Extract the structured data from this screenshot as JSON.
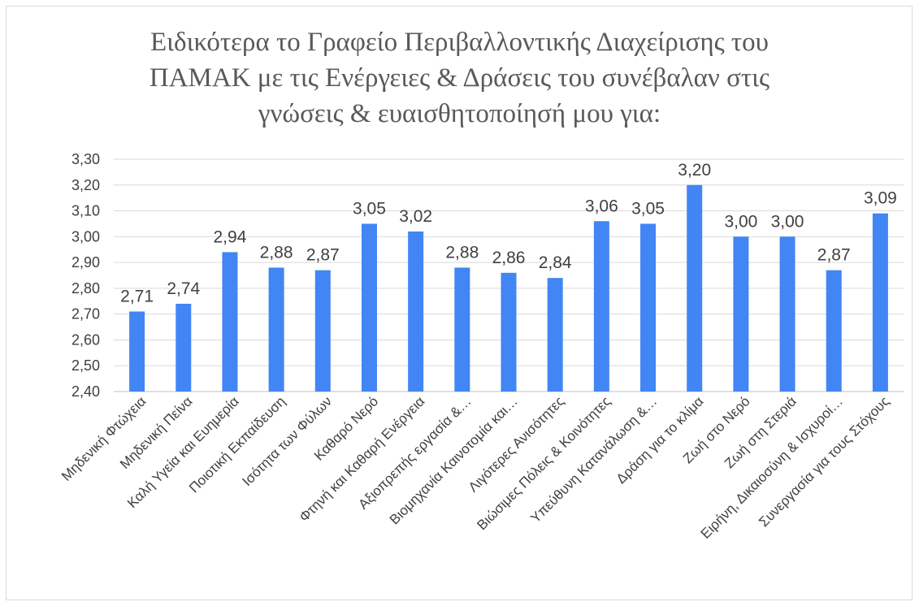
{
  "chart_data": {
    "type": "bar",
    "title": "Ειδικότερα το Γραφείο Περιβαλλοντικής Διαχείρισης του\nΠΑΜΑΚ με τις Ενέργειες & Δράσεις του συνέβαλαν στις\nγνώσεις & ευαισθητοποίησή μου για:",
    "categories": [
      "Μηδενική Φτώχεια",
      "Μηδενική Πείνα",
      "Καλή Υγεία και Ευημερία",
      "Ποιοτική Εκπαίδευση",
      "Ισότητα των Φύλων",
      "Καθαρό Νερό",
      "Φτηνή και Καθαρή Ενέργεια",
      "Αξιοπρεπής εργασία &…",
      "Βιομηχανία Καινοτομία και…",
      "Λιγότερες Ανισότητες",
      "Βιώσιμες Πόλεις & Κοινότητες",
      "Υπεύθυνη Κατανάλωση &…",
      "Δράση για το κλίμα",
      "Ζωή στο Νερό",
      "Ζωή στη Στεριά",
      "Ειρήνη, Δικαιοσύνη & Ισχυροί…",
      "Συνεργασία για τους Στόχους"
    ],
    "values": [
      2.71,
      2.74,
      2.94,
      2.88,
      2.87,
      3.05,
      3.02,
      2.88,
      2.86,
      2.84,
      3.06,
      3.05,
      3.2,
      3.0,
      3.0,
      2.87,
      3.09
    ],
    "data_labels": [
      "2,71",
      "2,74",
      "2,94",
      "2,88",
      "2,87",
      "3,05",
      "3,02",
      "2,88",
      "2,86",
      "2,84",
      "3,06",
      "3,05",
      "3,20",
      "3,00",
      "3,00",
      "2,87",
      "3,09"
    ],
    "yticks": [
      2.4,
      2.5,
      2.6,
      2.7,
      2.8,
      2.9,
      3.0,
      3.1,
      3.2,
      3.3
    ],
    "ytick_labels": [
      "2,40",
      "2,50",
      "2,60",
      "2,70",
      "2,80",
      "2,90",
      "3,00",
      "3,10",
      "3,20",
      "3,30"
    ],
    "ylim": [
      2.4,
      3.3
    ],
    "xlabel": "",
    "ylabel": "",
    "grid": true,
    "legend": "none",
    "bar_color": "#4285f4",
    "grid_color": "#d9d9d9"
  }
}
